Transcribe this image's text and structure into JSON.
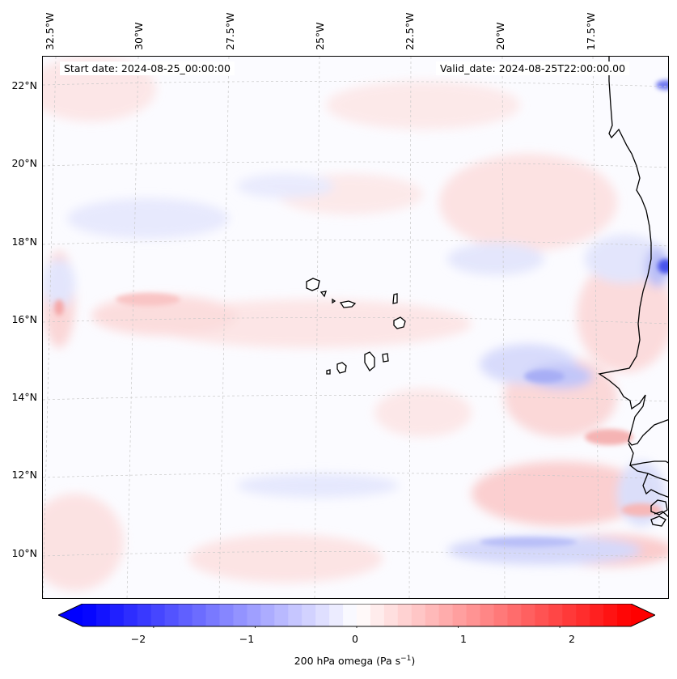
{
  "map": {
    "start_date": "Start date: 2024-08-25_00:00:00",
    "valid_date": "Valid_date: 2024-08-25T22:00:00.00",
    "lon_labels": [
      "32.5°W",
      "30°W",
      "27.5°W",
      "25°W",
      "22.5°W",
      "20°W",
      "17.5°W"
    ],
    "lat_labels": [
      "22°N",
      "20°N",
      "18°N",
      "16°N",
      "14°N",
      "12°N",
      "10°N"
    ],
    "colors": {
      "negative": "#0000ff",
      "neutral": "#ffffff",
      "positive": "#ff0000",
      "coast": "#000000"
    }
  },
  "colorbar": {
    "ticks": [
      "−2",
      "−1",
      "0",
      "1",
      "2"
    ],
    "label_main": "200 hPa omega (Pa s",
    "label_sup": "−1",
    "label_end": ")",
    "min": -2.7,
    "max": 2.7
  }
}
